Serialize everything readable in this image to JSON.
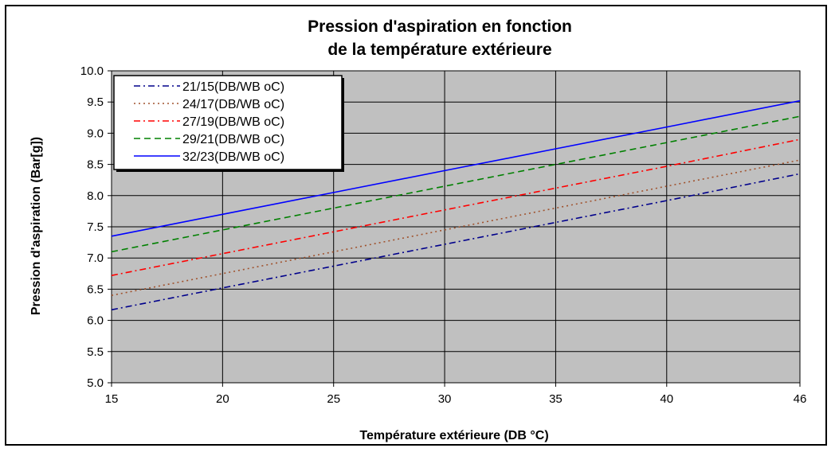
{
  "chart_data": {
    "type": "line",
    "title_line1": "Pression d'aspiration en fonction",
    "title_line2": "de la température extérieure",
    "xlabel": "Température extérieure (DB °C)",
    "ylabel": "Pression d'aspiration (Bar[g])",
    "xlim": [
      15,
      46
    ],
    "ylim": [
      5.0,
      10.0
    ],
    "xticks": [
      15,
      20,
      25,
      30,
      35,
      40,
      46
    ],
    "yticks": [
      "5.0",
      "5.5",
      "6.0",
      "6.5",
      "7.0",
      "7.5",
      "8.0",
      "8.5",
      "9.0",
      "9.5",
      "10.0"
    ],
    "grid": true,
    "legend_position": "top-left",
    "plot_background": "#c0c0c0",
    "series": [
      {
        "name": "21/15(DB/WB oC)",
        "color": "#00008b",
        "dash": "dash-dot",
        "x": [
          15,
          20,
          25,
          30,
          35,
          40,
          46
        ],
        "y": [
          6.17,
          6.52,
          6.87,
          7.22,
          7.57,
          7.92,
          8.35
        ]
      },
      {
        "name": "24/17(DB/WB oC)",
        "color": "#a0522d",
        "dash": "dot",
        "x": [
          15,
          20,
          25,
          30,
          35,
          40,
          46
        ],
        "y": [
          6.4,
          6.75,
          7.1,
          7.45,
          7.8,
          8.15,
          8.57
        ]
      },
      {
        "name": "27/19(DB/WB oC)",
        "color": "#ff0000",
        "dash": "dash-dot",
        "x": [
          15,
          20,
          25,
          30,
          35,
          40,
          46
        ],
        "y": [
          6.72,
          7.07,
          7.42,
          7.77,
          8.12,
          8.47,
          8.9
        ]
      },
      {
        "name": "29/21(DB/WB oC)",
        "color": "#008000",
        "dash": "dash",
        "x": [
          15,
          20,
          25,
          30,
          35,
          40,
          46
        ],
        "y": [
          7.1,
          7.45,
          7.8,
          8.15,
          8.5,
          8.85,
          9.27
        ]
      },
      {
        "name": "32/23(DB/WB oC)",
        "color": "#0000ff",
        "dash": "solid",
        "x": [
          15,
          20,
          25,
          30,
          35,
          40,
          46
        ],
        "y": [
          7.35,
          7.7,
          8.05,
          8.4,
          8.75,
          9.1,
          9.52
        ]
      }
    ]
  }
}
